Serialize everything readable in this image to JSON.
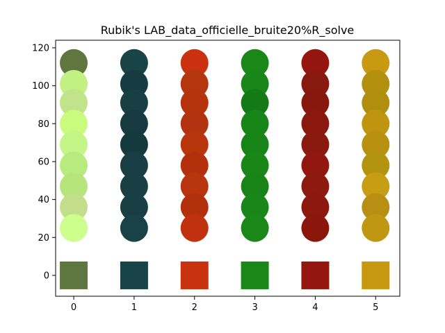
{
  "chart_data": {
    "type": "scatter",
    "title": "Rubik's LAB_data_officielle_bruite20%R_solve",
    "xlabel": "",
    "ylabel": "",
    "xlim": [
      -0.3,
      5.4
    ],
    "ylim": [
      -11,
      124
    ],
    "x_ticks": [
      "0",
      "1",
      "2",
      "3",
      "4",
      "5"
    ],
    "y_ticks": [
      "0",
      "20",
      "40",
      "60",
      "80",
      "100",
      "120"
    ],
    "y_tick_values": [
      0,
      20,
      40,
      60,
      80,
      100,
      120
    ],
    "grid": false,
    "legend": "none",
    "circle_y": [
      112,
      101,
      91,
      80,
      69,
      58,
      47,
      36,
      25
    ],
    "square_y": 0,
    "columns": [
      {
        "x": 0,
        "square": "#5e763f",
        "circles": [
          "#5f773e",
          "#c2f082",
          "#c1e48a",
          "#c9fb7f",
          "#c3f686",
          "#b8eb7e",
          "#b6e57c",
          "#c3de8b",
          "#ccff8b"
        ]
      },
      {
        "x": 1,
        "square": "#184347",
        "circles": [
          "#184347",
          "#163b40",
          "#173f44",
          "#163a3f",
          "#153a3e",
          "#183e43",
          "#193f44",
          "#183f44",
          "#184246"
        ]
      },
      {
        "x": 2,
        "square": "#c9320f",
        "circles": [
          "#c9310f",
          "#b4360e",
          "#b5340e",
          "#b2330f",
          "#b9360d",
          "#b4300c",
          "#b8340f",
          "#b3300c",
          "#c0320f"
        ]
      },
      {
        "x": 3,
        "square": "#1a8719",
        "circles": [
          "#1a8719",
          "#188618",
          "#147a15",
          "#188518",
          "#178418",
          "#188718",
          "#188317",
          "#1a861a",
          "#198819"
        ]
      },
      {
        "x": 4,
        "square": "#94160f",
        "circles": [
          "#95160f",
          "#88190f",
          "#88180e",
          "#8a180e",
          "#8a190e",
          "#92180f",
          "#8c1a0f",
          "#8c180e",
          "#8b160c"
        ]
      },
      {
        "x": 5,
        "square": "#c79912",
        "circles": [
          "#c79a12",
          "#b4900f",
          "#b18f0e",
          "#bf940f",
          "#b99110",
          "#b39410",
          "#c69d13",
          "#b98f13",
          "#c09712"
        ]
      }
    ]
  }
}
